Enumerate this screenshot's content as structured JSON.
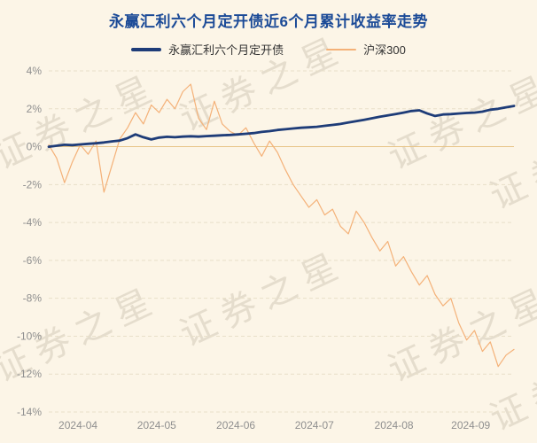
{
  "page": {
    "background": "#fcf5e7",
    "watermark": "证券之星"
  },
  "chart_data": {
    "type": "line",
    "title": "永赢汇利六个月定开债近6个月累计收益率走势",
    "xlabel": "",
    "ylabel": "",
    "ylim": [
      -14,
      4
    ],
    "grid": true,
    "legend_position": "top",
    "x_tick_labels": [
      "2024-04",
      "2024-05",
      "2024-06",
      "2024-07",
      "2024-08",
      "2024-09"
    ],
    "y_ticks": [
      {
        "label": "4%",
        "value": 4
      },
      {
        "label": "2%",
        "value": 2
      },
      {
        "label": "0%",
        "value": 0
      },
      {
        "label": "-2%",
        "value": -2
      },
      {
        "label": "-4%",
        "value": -4
      },
      {
        "label": "-6%",
        "value": -6
      },
      {
        "label": "-8%",
        "value": -8
      },
      {
        "label": "-10%",
        "value": -10
      },
      {
        "label": "-12%",
        "value": -12
      },
      {
        "label": "-14%",
        "value": -14
      }
    ],
    "series": [
      {
        "name": "永赢汇利六个月定开债",
        "color": "#1e3c78",
        "width": 2.8,
        "values": [
          0.0,
          0.05,
          0.1,
          0.08,
          0.12,
          0.15,
          0.18,
          0.22,
          0.28,
          0.32,
          0.45,
          0.65,
          0.5,
          0.38,
          0.48,
          0.52,
          0.5,
          0.53,
          0.55,
          0.53,
          0.56,
          0.58,
          0.6,
          0.62,
          0.65,
          0.68,
          0.72,
          0.78,
          0.82,
          0.88,
          0.92,
          0.96,
          1.0,
          1.02,
          1.05,
          1.1,
          1.15,
          1.2,
          1.28,
          1.35,
          1.42,
          1.5,
          1.58,
          1.65,
          1.72,
          1.8,
          1.88,
          1.92,
          1.75,
          1.62,
          1.7,
          1.72,
          1.75,
          1.78,
          1.8,
          1.85,
          1.95,
          2.0,
          2.08,
          2.15
        ]
      },
      {
        "name": "沪深300",
        "color": "#f4b178",
        "width": 1.2,
        "values": [
          0.1,
          -0.6,
          -1.9,
          -0.8,
          0.1,
          -0.4,
          0.3,
          -2.4,
          -1.0,
          0.4,
          1.0,
          1.8,
          1.2,
          2.2,
          1.8,
          2.5,
          2.0,
          2.9,
          3.3,
          1.5,
          0.9,
          2.4,
          1.2,
          0.8,
          0.6,
          1.0,
          0.2,
          -0.5,
          0.3,
          -0.3,
          -1.2,
          -2.0,
          -2.6,
          -3.2,
          -2.8,
          -3.6,
          -3.3,
          -4.2,
          -4.6,
          -3.4,
          -4.0,
          -4.8,
          -5.5,
          -5.0,
          -6.3,
          -5.8,
          -6.6,
          -7.3,
          -6.8,
          -7.8,
          -8.4,
          -8.0,
          -9.3,
          -10.2,
          -9.7,
          -10.8,
          -10.3,
          -11.6,
          -11.0,
          -10.7
        ]
      }
    ]
  }
}
